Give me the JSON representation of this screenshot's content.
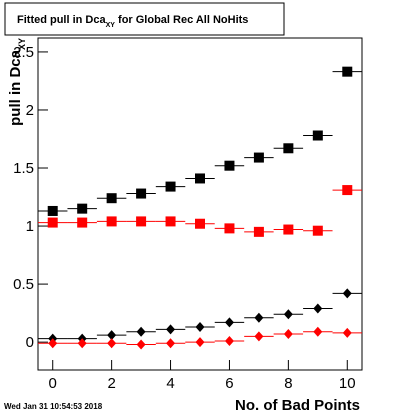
{
  "chart_data": {
    "type": "scatter",
    "title": {
      "main": "Fitted pull in Dca",
      "sub": "XY",
      "rest": " for Global Rec All NoHits"
    },
    "y_label": {
      "main": "pull in Dca",
      "sub": "XY"
    },
    "x_label": "No. of Bad Points",
    "timestamp": "Wed Jan 31 10:54:53 2018",
    "xlim": [
      -0.5,
      10.5
    ],
    "xticks": [
      0,
      2,
      4,
      6,
      8,
      10
    ],
    "ylim": [
      -0.24,
      2.62
    ],
    "yticks": [
      0,
      0.5,
      1,
      1.5,
      2,
      2.5
    ],
    "series": [
      {
        "color": "#000000",
        "marker": "square",
        "xerr": 0.5,
        "x": [
          0,
          1,
          2,
          3,
          4,
          5,
          6,
          7,
          8,
          9,
          10
        ],
        "values": [
          1.13,
          1.15,
          1.24,
          1.28,
          1.34,
          1.41,
          1.52,
          1.59,
          1.67,
          1.78,
          2.33
        ]
      },
      {
        "color": "#ff0000",
        "marker": "square",
        "xerr": 0.5,
        "x": [
          0,
          1,
          2,
          3,
          4,
          5,
          6,
          7,
          8,
          9,
          10
        ],
        "values": [
          1.03,
          1.03,
          1.04,
          1.04,
          1.04,
          1.02,
          0.98,
          0.95,
          0.97,
          0.96,
          1.31
        ]
      },
      {
        "color": "#000000",
        "marker": "diamond",
        "xerr": 0.5,
        "x": [
          0,
          1,
          2,
          3,
          4,
          5,
          6,
          7,
          8,
          9,
          10
        ],
        "values": [
          0.03,
          0.03,
          0.06,
          0.09,
          0.11,
          0.13,
          0.17,
          0.21,
          0.24,
          0.29,
          0.42
        ]
      },
      {
        "color": "#ff0000",
        "marker": "diamond",
        "xerr": 0.5,
        "x": [
          0,
          1,
          2,
          3,
          4,
          5,
          6,
          7,
          8,
          9,
          10
        ],
        "values": [
          -0.01,
          -0.01,
          -0.01,
          -0.02,
          -0.01,
          0.0,
          0.01,
          0.05,
          0.07,
          0.09,
          0.08
        ]
      }
    ]
  }
}
